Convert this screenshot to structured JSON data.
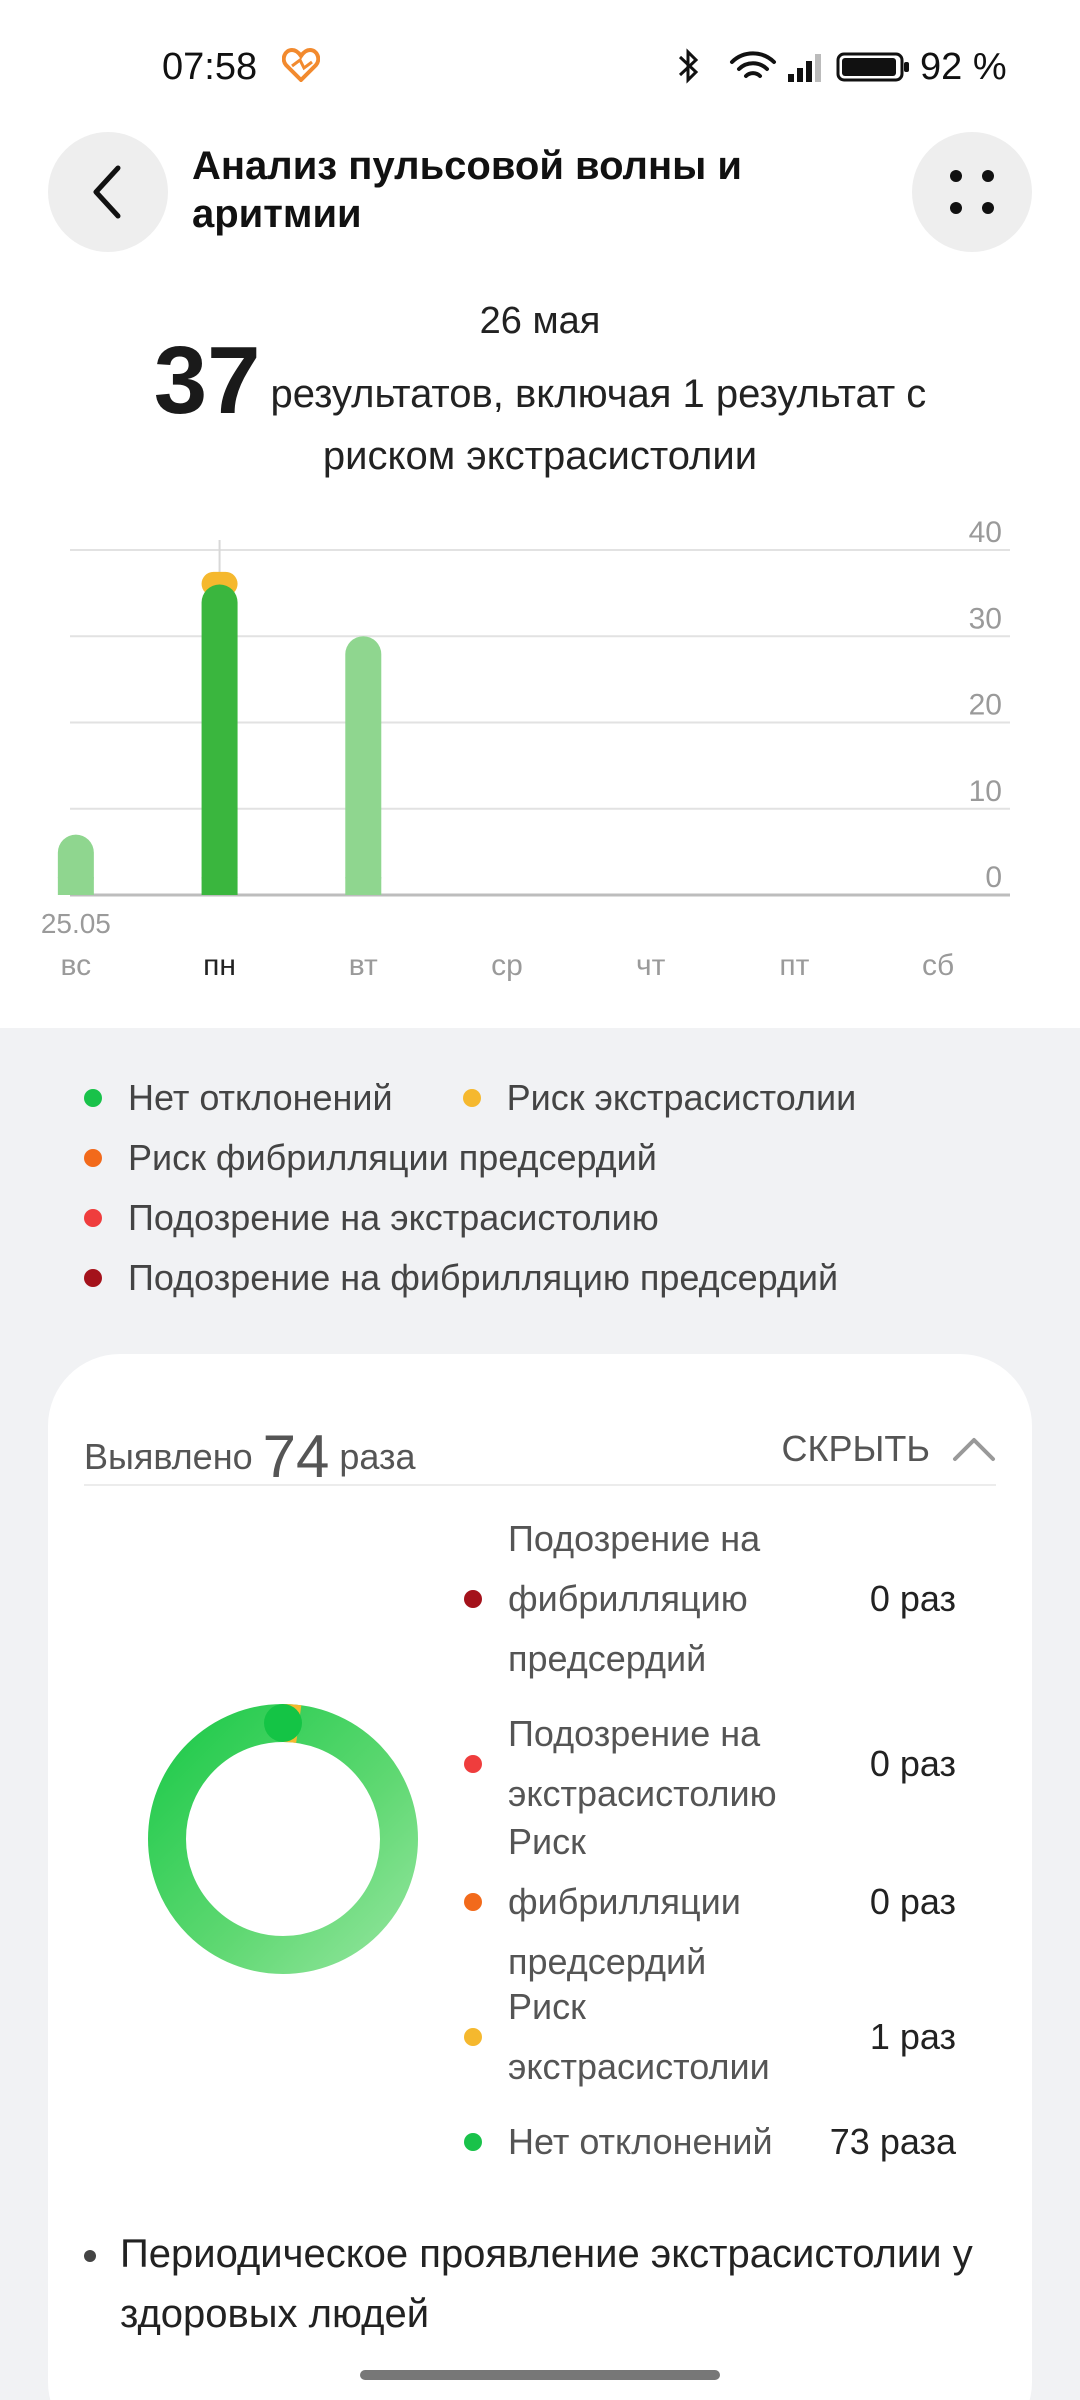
{
  "status_bar": {
    "time": "07:58",
    "battery": "92 %"
  },
  "header": {
    "title": "Анализ пульсовой волны и аритмии"
  },
  "date": "26 мая",
  "summary": {
    "count": "37",
    "text": "результатов, включая 1 результат с риском экстрасистолии"
  },
  "colors": {
    "normal": "#19c24a",
    "extrasystole_risk": "#f5b82e",
    "af_risk": "#f26a1b",
    "extrasystole_suspicion": "#ef3d3d",
    "af_suspicion": "#a4121b",
    "bar_light": "#8fd68f",
    "bar_selected": "#3ab63e"
  },
  "chart_data": {
    "type": "bar",
    "categories": [
      "вс",
      "пн",
      "вт",
      "ср",
      "чт",
      "пт",
      "сб"
    ],
    "date_label_first": "25.05",
    "selected_index": 1,
    "series": [
      {
        "name": "Нет отклонений",
        "values": [
          7,
          36,
          30,
          0,
          0,
          0,
          0
        ]
      },
      {
        "name": "Риск экстрасистолии",
        "values": [
          0,
          1,
          0,
          0,
          0,
          0,
          0
        ]
      }
    ],
    "y_ticks": [
      "0",
      "10",
      "20",
      "30",
      "40"
    ],
    "ylim": [
      0,
      40
    ],
    "grid": true,
    "axis_position": "right"
  },
  "legend": {
    "items": [
      {
        "label": "Нет отклонений",
        "color": "#19c24a"
      },
      {
        "label": "Риск экстрасистолии",
        "color": "#f5b82e"
      },
      {
        "label": "Риск фибрилляции предсердий",
        "color": "#f26a1b"
      },
      {
        "label": "Подозрение на экстрасистолию",
        "color": "#ef3d3d"
      },
      {
        "label": "Подозрение на фибрилляцию предсердий",
        "color": "#a4121b"
      }
    ]
  },
  "card": {
    "detected_label": "Выявлено",
    "detected_count": "74",
    "detected_unit": "раза",
    "hide_label": "СКРЫТЬ",
    "donut": {
      "normal": 73,
      "extrasystole_risk": 1,
      "total": 74
    },
    "breakdown": [
      {
        "label": "Подозрение на фибрилляцию предсердий",
        "count": "0 раз",
        "color": "#a4121b"
      },
      {
        "label": "Подозрение на экстрасистолию",
        "count": "0 раз",
        "color": "#ef3d3d"
      },
      {
        "label": "Риск фибрилляции предсердий",
        "count": "0 раз",
        "color": "#f26a1b"
      },
      {
        "label": "Риск экстрасистолии",
        "count": "1 раз",
        "color": "#f5b82e"
      },
      {
        "label": "Нет отклонений",
        "count": "73 раза",
        "color": "#19c24a"
      }
    ],
    "bullet": "Периодическое проявление экстрасистолии у здоровых людей"
  }
}
